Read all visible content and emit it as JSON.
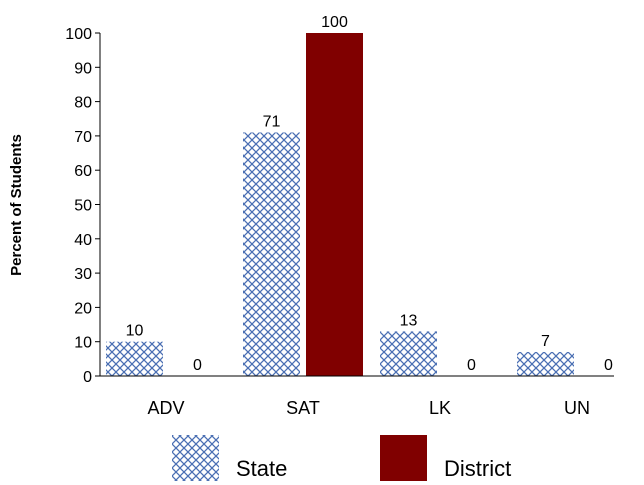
{
  "chart_data": {
    "type": "bar",
    "title": "",
    "xlabel": "",
    "ylabel": "Percent of Students",
    "categories": [
      "ADV",
      "SAT",
      "LK",
      "UN"
    ],
    "series": [
      {
        "name": "State",
        "values": [
          10,
          71,
          13,
          7
        ],
        "color": "#4a6fb3",
        "pattern": "crosshatch"
      },
      {
        "name": "District",
        "values": [
          0,
          100,
          0,
          0
        ],
        "color": "#800000",
        "pattern": "solid"
      }
    ],
    "ylim": [
      0,
      100
    ],
    "yticks": [
      0,
      10,
      20,
      30,
      40,
      50,
      60,
      70,
      80,
      90,
      100
    ],
    "data_labels": true,
    "grid": false,
    "legend": "bottom"
  }
}
